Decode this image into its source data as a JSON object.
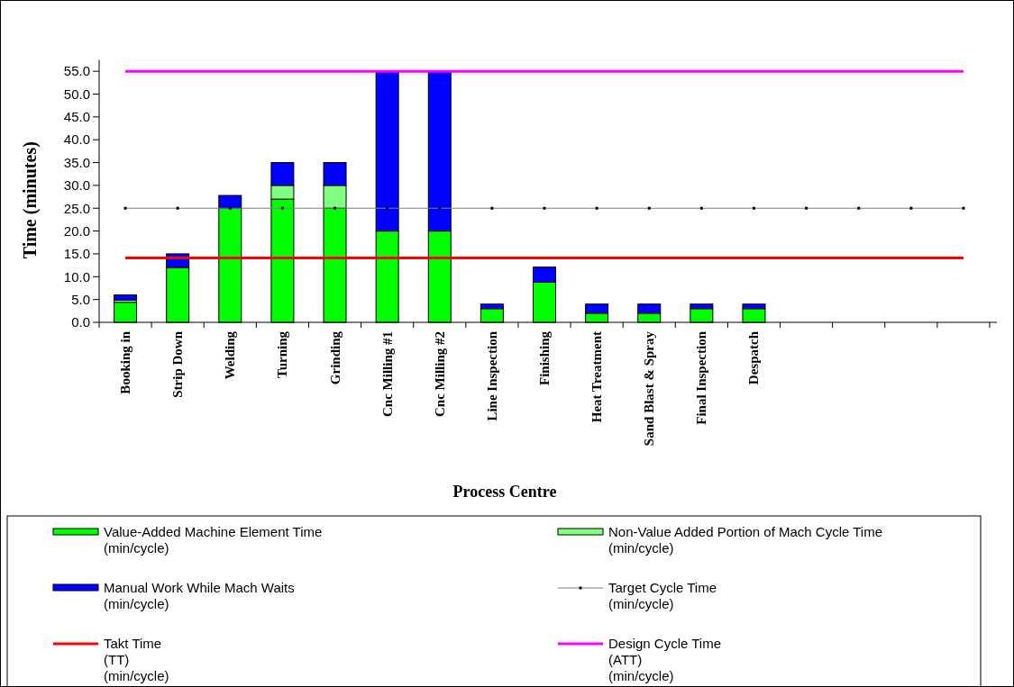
{
  "chart_data": {
    "type": "bar",
    "stacked": true,
    "xlabel": "Process Centre",
    "ylabel": "Time (minutes)",
    "categories": [
      "Booking in",
      "Strip Down",
      "Welding",
      "Turning",
      "Grinding",
      "Cnc Milling #1",
      "Cnc Milling #2",
      "Line Inspection",
      "Finishing",
      "Heat Treatment",
      "Sand Blast & Spray",
      "Final Inspection",
      "Despatch",
      null,
      null,
      null,
      null
    ],
    "ylim": [
      0,
      57.5
    ],
    "yticks": [
      {
        "value": 0,
        "label": "0.0"
      },
      {
        "value": 5,
        "label": "5.0"
      },
      {
        "value": 10,
        "label": "10.0"
      },
      {
        "value": 15,
        "label": "15.0"
      },
      {
        "value": 20,
        "label": "20.0"
      },
      {
        "value": 25,
        "label": "25.0"
      },
      {
        "value": 30,
        "label": "30.0"
      },
      {
        "value": 35,
        "label": "35.0"
      },
      {
        "value": 40,
        "label": "40.0"
      },
      {
        "value": 45,
        "label": "45.0"
      },
      {
        "value": 50,
        "label": "50.0"
      },
      {
        "value": 55,
        "label": "55.0"
      }
    ],
    "legend": "bottom",
    "grid": false,
    "series": [
      {
        "name": "Value-Added Machine Element Time (min/cycle)",
        "color": "#00ff00",
        "values": [
          4.4,
          12,
          25,
          27,
          25,
          20,
          20,
          3,
          8.8,
          2,
          2,
          3,
          3,
          null,
          null,
          null,
          null
        ]
      },
      {
        "name": "Non-Value Added Portion of Mach Cycle Time (min/cycle)",
        "color": "#80ff80",
        "values": [
          0.5,
          0,
          0,
          3,
          5,
          0,
          0,
          0,
          0,
          0,
          0,
          0,
          0,
          null,
          null,
          null,
          null
        ]
      },
      {
        "name": "Manual Work While Mach Waits (min/cycle)",
        "color": "#0000ff",
        "values": [
          1.1,
          3,
          2.8,
          5,
          5,
          35,
          35,
          1,
          3.3,
          2,
          2,
          1,
          1,
          null,
          null,
          null,
          null
        ]
      },
      {
        "name": "Target Cycle Time (min/cycle)",
        "type": "line",
        "color": "#808080",
        "marker": "square",
        "values": [
          25,
          25,
          25,
          25,
          25,
          25,
          25,
          25,
          25,
          25,
          25,
          25,
          25,
          25,
          25,
          25,
          25
        ]
      },
      {
        "name": "Takt Time (TT) (min/cycle)",
        "type": "line",
        "color": "#ff0000",
        "marker": "none",
        "values": [
          14.1,
          14.1,
          14.1,
          14.1,
          14.1,
          14.1,
          14.1,
          14.1,
          14.1,
          14.1,
          14.1,
          14.1,
          14.1,
          14.1,
          14.1,
          14.1,
          14.1
        ]
      },
      {
        "name": "Design Cycle Time (ATT) (min/cycle)",
        "type": "line",
        "color": "#ff00ff",
        "marker": "none",
        "values": [
          55,
          55,
          55,
          55,
          55,
          55,
          55,
          55,
          55,
          55,
          55,
          55,
          55,
          55,
          55,
          55,
          55
        ]
      }
    ]
  }
}
